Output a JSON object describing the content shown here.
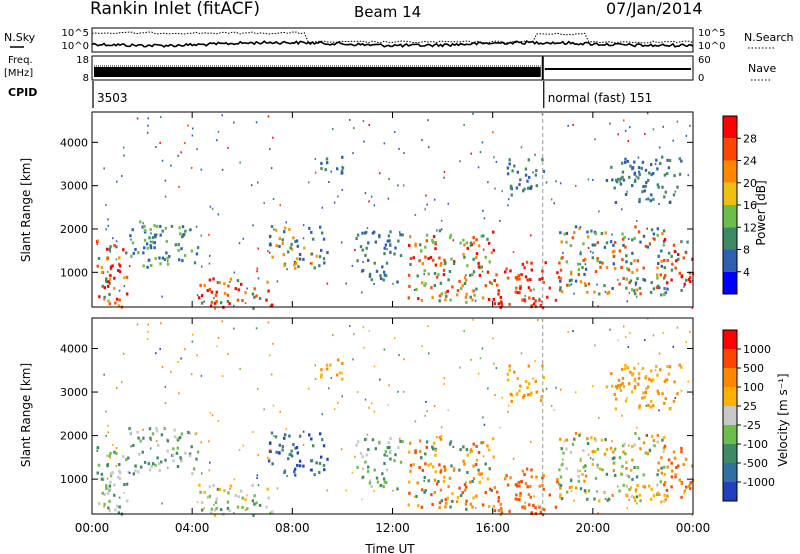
{
  "header": {
    "station": "Rankin Inlet (fitACF)",
    "beam": "Beam 14",
    "date": "07/Jan/2014"
  },
  "noise_panel": {
    "left_label": "N.Sky",
    "right_label": "N.Search",
    "left_ticks": [
      "10^5",
      "10^0"
    ],
    "right_ticks": [
      "10^5",
      "10^0"
    ]
  },
  "freq_panel": {
    "left_label_1": "Freq.",
    "left_label_2": "[MHz]",
    "right_label": "Nave",
    "left_ticks": [
      "18",
      "8"
    ],
    "right_ticks": [
      "60",
      "0"
    ]
  },
  "cpid_panel": {
    "label": "CPID",
    "segments": [
      {
        "start_hour": 0,
        "end_hour": 18.0,
        "text": "3503"
      },
      {
        "start_hour": 18.0,
        "end_hour": 24,
        "text": "normal (fast) 151"
      }
    ]
  },
  "chart_data": [
    {
      "type": "heatmap",
      "name": "power",
      "ylabel": "Slant Range [km]",
      "yticks": [
        1000,
        2000,
        3000,
        4000
      ],
      "ylim": [
        200,
        4700
      ],
      "xlim": [
        0,
        24
      ],
      "colorbar": {
        "label": "Power [dB]",
        "ticks": [
          "4",
          "8",
          "12",
          "16",
          "20",
          "24",
          "28"
        ],
        "colors": [
          "#0000ff",
          "#2f5fb0",
          "#3e8a65",
          "#6cbe4a",
          "#f0c010",
          "#ff8800",
          "#ff4400",
          "#ff0000"
        ]
      },
      "regions": [
        {
          "x": [
            0.1,
            1.4
          ],
          "y": [
            200,
            1900
          ],
          "colors": [
            "#3e8a65",
            "#f0a000",
            "#ff5000",
            "#ff0000"
          ]
        },
        {
          "x": [
            1.4,
            2.6
          ],
          "y": [
            1300,
            2200
          ],
          "colors": [
            "#2f5fb0",
            "#3e8a65",
            "#6cbe4a"
          ]
        },
        {
          "x": [
            2.0,
            4.2
          ],
          "y": [
            1100,
            2100
          ],
          "colors": [
            "#2f5fb0",
            "#3e8a65",
            "#6cbe4a"
          ]
        },
        {
          "x": [
            4.2,
            7.2
          ],
          "y": [
            200,
            900
          ],
          "colors": [
            "#ff0000",
            "#ff5000",
            "#ff8800",
            "#3e8a65"
          ]
        },
        {
          "x": [
            7.0,
            9.4
          ],
          "y": [
            1100,
            2100
          ],
          "colors": [
            "#2f5fb0",
            "#f0a000",
            "#ff8800",
            "#3e8a65"
          ]
        },
        {
          "x": [
            10.5,
            12.4
          ],
          "y": [
            800,
            2000
          ],
          "colors": [
            "#2f5fb0",
            "#3e8a65"
          ]
        },
        {
          "x": [
            12.6,
            16.0
          ],
          "y": [
            300,
            2000
          ],
          "colors": [
            "#3e8a65",
            "#ff8800",
            "#ff4400",
            "#ff0000",
            "#6cbe4a"
          ]
        },
        {
          "x": [
            16.0,
            18.6
          ],
          "y": [
            200,
            1300
          ],
          "colors": [
            "#ff0000",
            "#ff2000",
            "#ff5000"
          ]
        },
        {
          "x": [
            18.6,
            23.0
          ],
          "y": [
            500,
            2100
          ],
          "colors": [
            "#2f5fb0",
            "#3e8a65",
            "#ff8800",
            "#ff4400",
            "#6cbe4a"
          ]
        },
        {
          "x": [
            22.8,
            24.0
          ],
          "y": [
            600,
            1800
          ],
          "colors": [
            "#ff4400",
            "#ff0000",
            "#3e8a65"
          ]
        },
        {
          "x": [
            9.0,
            10.0
          ],
          "y": [
            3300,
            3800
          ],
          "colors": [
            "#3e8a65",
            "#2f5fb0"
          ]
        },
        {
          "x": [
            16.5,
            18.0
          ],
          "y": [
            2800,
            3700
          ],
          "colors": [
            "#2f5fb0",
            "#3e8a65"
          ]
        },
        {
          "x": [
            20.5,
            23.5
          ],
          "y": [
            2600,
            3700
          ],
          "colors": [
            "#2f5fb0",
            "#3e8a65"
          ]
        }
      ]
    },
    {
      "type": "heatmap",
      "name": "velocity",
      "ylabel": "Slant Range [km]",
      "xlabel": "Time UT",
      "yticks": [
        1000,
        2000,
        3000,
        4000
      ],
      "ylim": [
        200,
        4700
      ],
      "xlim": [
        0,
        24
      ],
      "xticks": [
        "00:00",
        "04:00",
        "08:00",
        "12:00",
        "16:00",
        "20:00",
        "00:00"
      ],
      "colorbar": {
        "label": "Velocity [m s⁻¹]",
        "ticks": [
          "1000",
          "500",
          "100",
          "25",
          "-25",
          "-100",
          "-500",
          "-1000"
        ],
        "colors": [
          "#2040c0",
          "#3070a0",
          "#3e8a65",
          "#6cbe4a",
          "#c8c8c8",
          "#ffb000",
          "#ff8800",
          "#ff4400",
          "#ff0000"
        ]
      },
      "regions": [
        {
          "x": [
            0.1,
            1.4
          ],
          "y": [
            200,
            1900
          ],
          "colors": [
            "#6cbe4a",
            "#3e8a65",
            "#c8c8c8"
          ]
        },
        {
          "x": [
            1.4,
            4.2
          ],
          "y": [
            1100,
            2200
          ],
          "colors": [
            "#3e8a65",
            "#6cbe4a",
            "#c8c8c8"
          ]
        },
        {
          "x": [
            4.2,
            7.2
          ],
          "y": [
            200,
            900
          ],
          "colors": [
            "#c8c8c8",
            "#6cbe4a",
            "#ffb000",
            "#3e8a65"
          ]
        },
        {
          "x": [
            7.0,
            9.4
          ],
          "y": [
            1100,
            2100
          ],
          "colors": [
            "#2040c0",
            "#3070a0",
            "#3e8a65"
          ]
        },
        {
          "x": [
            10.5,
            12.4
          ],
          "y": [
            800,
            2000
          ],
          "colors": [
            "#3e8a65",
            "#6cbe4a",
            "#c8c8c8"
          ]
        },
        {
          "x": [
            12.6,
            16.0
          ],
          "y": [
            300,
            2000
          ],
          "colors": [
            "#ff8800",
            "#ff4400",
            "#ffb000",
            "#3e8a65"
          ]
        },
        {
          "x": [
            16.0,
            18.6
          ],
          "y": [
            200,
            1300
          ],
          "colors": [
            "#ff8800",
            "#ff4400",
            "#ff5000"
          ]
        },
        {
          "x": [
            18.6,
            23.0
          ],
          "y": [
            500,
            2100
          ],
          "colors": [
            "#ff8800",
            "#ffb000",
            "#3e8a65",
            "#6cbe4a",
            "#c8c8c8"
          ]
        },
        {
          "x": [
            22.8,
            24.0
          ],
          "y": [
            600,
            1800
          ],
          "colors": [
            "#ff8800",
            "#ff4400"
          ]
        },
        {
          "x": [
            9.0,
            10.0
          ],
          "y": [
            3300,
            3800
          ],
          "colors": [
            "#ffb000",
            "#ff8800"
          ]
        },
        {
          "x": [
            16.5,
            18.0
          ],
          "y": [
            2800,
            3700
          ],
          "colors": [
            "#ffb000",
            "#ff8800"
          ]
        },
        {
          "x": [
            20.5,
            23.5
          ],
          "y": [
            2600,
            3700
          ],
          "colors": [
            "#ffb000",
            "#ff8800"
          ]
        }
      ]
    }
  ]
}
